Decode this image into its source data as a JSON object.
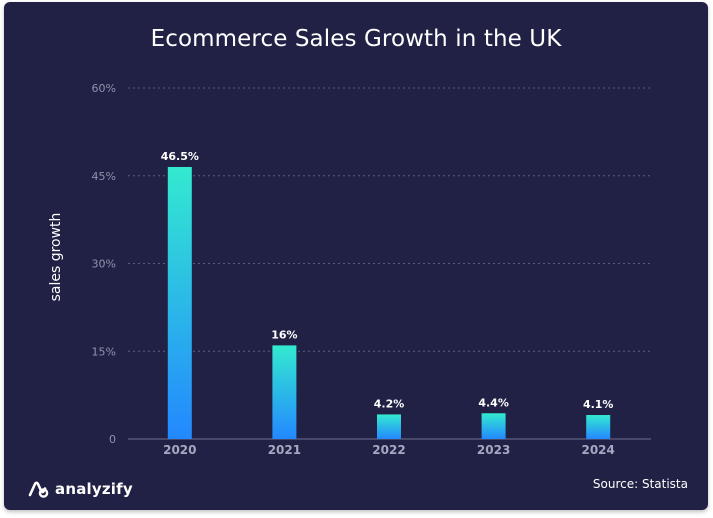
{
  "chart_data": {
    "type": "bar",
    "title": "Ecommerce Sales Growth in the UK",
    "xlabel": "",
    "ylabel": "sales growth",
    "categories": [
      "2020",
      "2021",
      "2022",
      "2023",
      "2024"
    ],
    "values": [
      46.5,
      16,
      4.2,
      4.4,
      4.1
    ],
    "data_labels": [
      "46.5%",
      "16%",
      "4.2%",
      "4.4%",
      "4.1%"
    ],
    "ylim": [
      0,
      60
    ],
    "yticks": [
      0,
      15,
      30,
      45,
      60
    ],
    "ytick_labels": [
      "0",
      "15%",
      "30%",
      "45%",
      "60%"
    ],
    "grid": true,
    "legend": "none",
    "colors": {
      "bar_top": "#33ead0",
      "bar_bottom": "#2388ff",
      "background": "#212145"
    }
  },
  "brand": {
    "name": "analyzify",
    "icon": "analyzify-logo-icon"
  },
  "source": "Source: Statista"
}
